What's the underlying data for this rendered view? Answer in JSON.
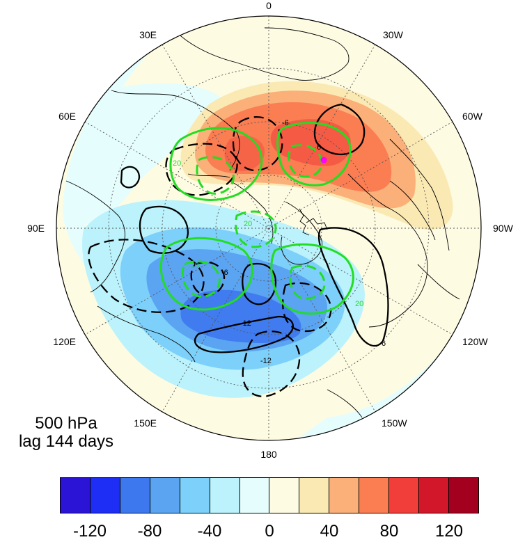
{
  "map": {
    "projection": "north polar stereographic",
    "longitude_labels": {
      "top": "0",
      "top_right": "30W",
      "right_upper": "60W",
      "right": "90W",
      "right_lower": "120W",
      "bottom_right": "150W",
      "bottom": "180",
      "bottom_left": "150E",
      "left_lower": "120E",
      "left": "90E",
      "left_upper": "60E",
      "top_left": "30E"
    },
    "contour_labels": {
      "black_solid_a": "6",
      "black_solid_b": "6",
      "black_dashed_a": "-6",
      "black_dashed_b": "-12",
      "black_dashed_c": "-12",
      "black_dashed_d": "-6",
      "green_a": "20",
      "green_b": "20",
      "green_c": "-20",
      "green_d": "20"
    },
    "marker_color": "#ff00ff",
    "colors": {
      "black_contour": "#000000",
      "green_contour": "#22dd22"
    }
  },
  "caption": {
    "level": "500 hPa",
    "lag": "lag 144 days"
  },
  "colorbar": {
    "colors": [
      "#2b14d6",
      "#1e2ef5",
      "#3d78ee",
      "#5aa4f2",
      "#7dd0fa",
      "#bbf2fb",
      "#e6fdfd",
      "#fefbe3",
      "#fbe9b4",
      "#fbb07a",
      "#fb7d52",
      "#f13e3a",
      "#d3172a",
      "#a3001f"
    ],
    "tick_labels": [
      "-120",
      "-80",
      "-40",
      "0",
      "40",
      "80",
      "120"
    ],
    "tick_values": [
      -120,
      -80,
      -40,
      0,
      40,
      80,
      120
    ]
  }
}
